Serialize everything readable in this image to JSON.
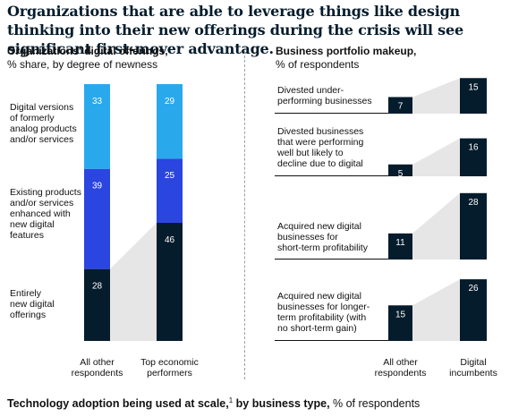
{
  "headline": "Organizations that are able to leverage things like design thinking into their new offerings during the crisis will see significant first-mover advantage.",
  "left_panel": {
    "title": "Organizations' digital offerings,",
    "subtitle": "% share, by degree of newness"
  },
  "right_panel": {
    "title": "Business portfolio makeup,",
    "subtitle": "% of respondents"
  },
  "bottom": {
    "title": "Technology adoption being used at scale,",
    "superscript": "1",
    "title_rest": " by business type,",
    "subtitle": " % of respondents"
  },
  "colors": {
    "light_blue": "#2aa8ec",
    "blue": "#2a45e0",
    "navy": "#051c2c",
    "connector": "#e6e6e6"
  },
  "chart_data": [
    {
      "type": "bar",
      "stacked": true,
      "categories": [
        "All other respondents",
        "Top economic performers"
      ],
      "series": [
        {
          "name": "Entirely new digital offerings",
          "values": [
            28,
            46
          ],
          "color": "#051c2c"
        },
        {
          "name": "Existing products and/or services enhanced with new digital features",
          "values": [
            39,
            25
          ],
          "color": "#2a45e0"
        },
        {
          "name": "Digital versions of formerly analog products and/or services",
          "values": [
            33,
            29
          ],
          "color": "#2aa8ec"
        }
      ]
    },
    {
      "type": "bar",
      "categories": [
        "All other respondents",
        "Digital incumbents"
      ],
      "rows": [
        {
          "label": "Divested under-performing businesses",
          "values": [
            7,
            15
          ]
        },
        {
          "label": "Divested businesses that were performing well but likely to decline due to digital",
          "values": [
            5,
            16
          ]
        },
        {
          "label": "Acquired new digital businesses for short-term profitability",
          "values": [
            11,
            28
          ]
        },
        {
          "label": "Acquired new digital businesses for longer-term profitability (with no short-term gain)",
          "values": [
            15,
            26
          ]
        }
      ]
    }
  ],
  "left_legend_lines": [
    [
      "Digital versions",
      "of formerly",
      "analog products",
      "and/or services"
    ],
    [
      "Existing products",
      "and/or services",
      "enhanced with",
      "new digital",
      "features"
    ],
    [
      "Entirely",
      "new digital",
      "offerings"
    ]
  ],
  "left_category_lines": [
    [
      "All other",
      "respondents"
    ],
    [
      "Top economic",
      "performers"
    ]
  ],
  "right_row_lines": [
    [
      "Divested under-",
      "performing businesses"
    ],
    [
      "Divested businesses",
      "that were performing",
      "well but likely to",
      "decline due to digital"
    ],
    [
      "Acquired new digital",
      "businesses for",
      "short-term profitability"
    ],
    [
      "Acquired new digital",
      "businesses for longer-",
      "term profitability (with",
      "no short-term gain)"
    ]
  ],
  "right_category_lines": [
    [
      "All other",
      "respondents"
    ],
    [
      "Digital",
      "incumbents"
    ]
  ]
}
